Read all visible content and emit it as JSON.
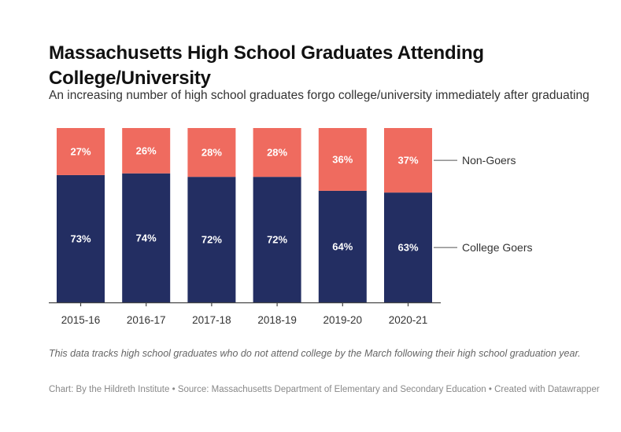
{
  "chart_data": {
    "type": "bar",
    "stacked": true,
    "normalized": true,
    "title": "Massachusetts High School Graduates Attending College/University",
    "subtitle": "An increasing number of high school graduates forgo college/university immediately after graduating",
    "categories": [
      "2015-16",
      "2016-17",
      "2017-18",
      "2018-19",
      "2019-20",
      "2020-21"
    ],
    "series": [
      {
        "name": "College Goers",
        "color": "#232e62",
        "values": [
          73,
          74,
          72,
          72,
          64,
          63
        ],
        "labels": [
          "73%",
          "74%",
          "72%",
          "72%",
          "64%",
          "63%"
        ]
      },
      {
        "name": "Non-Goers",
        "color": "#ef6b5f",
        "values": [
          27,
          26,
          28,
          28,
          36,
          37
        ],
        "labels": [
          "27%",
          "26%",
          "28%",
          "28%",
          "36%",
          "37%"
        ]
      }
    ],
    "ylim": [
      0,
      100
    ],
    "xlabel": "",
    "ylabel": "",
    "legend": "right, direct labels",
    "notes": "This data tracks high school graduates who do not attend college by the March following their high school graduation year.",
    "credit": "Chart: By the Hildreth Institute • Source: Massachusetts Department of Elementary and Secondary Education • Created with Datawrapper"
  }
}
